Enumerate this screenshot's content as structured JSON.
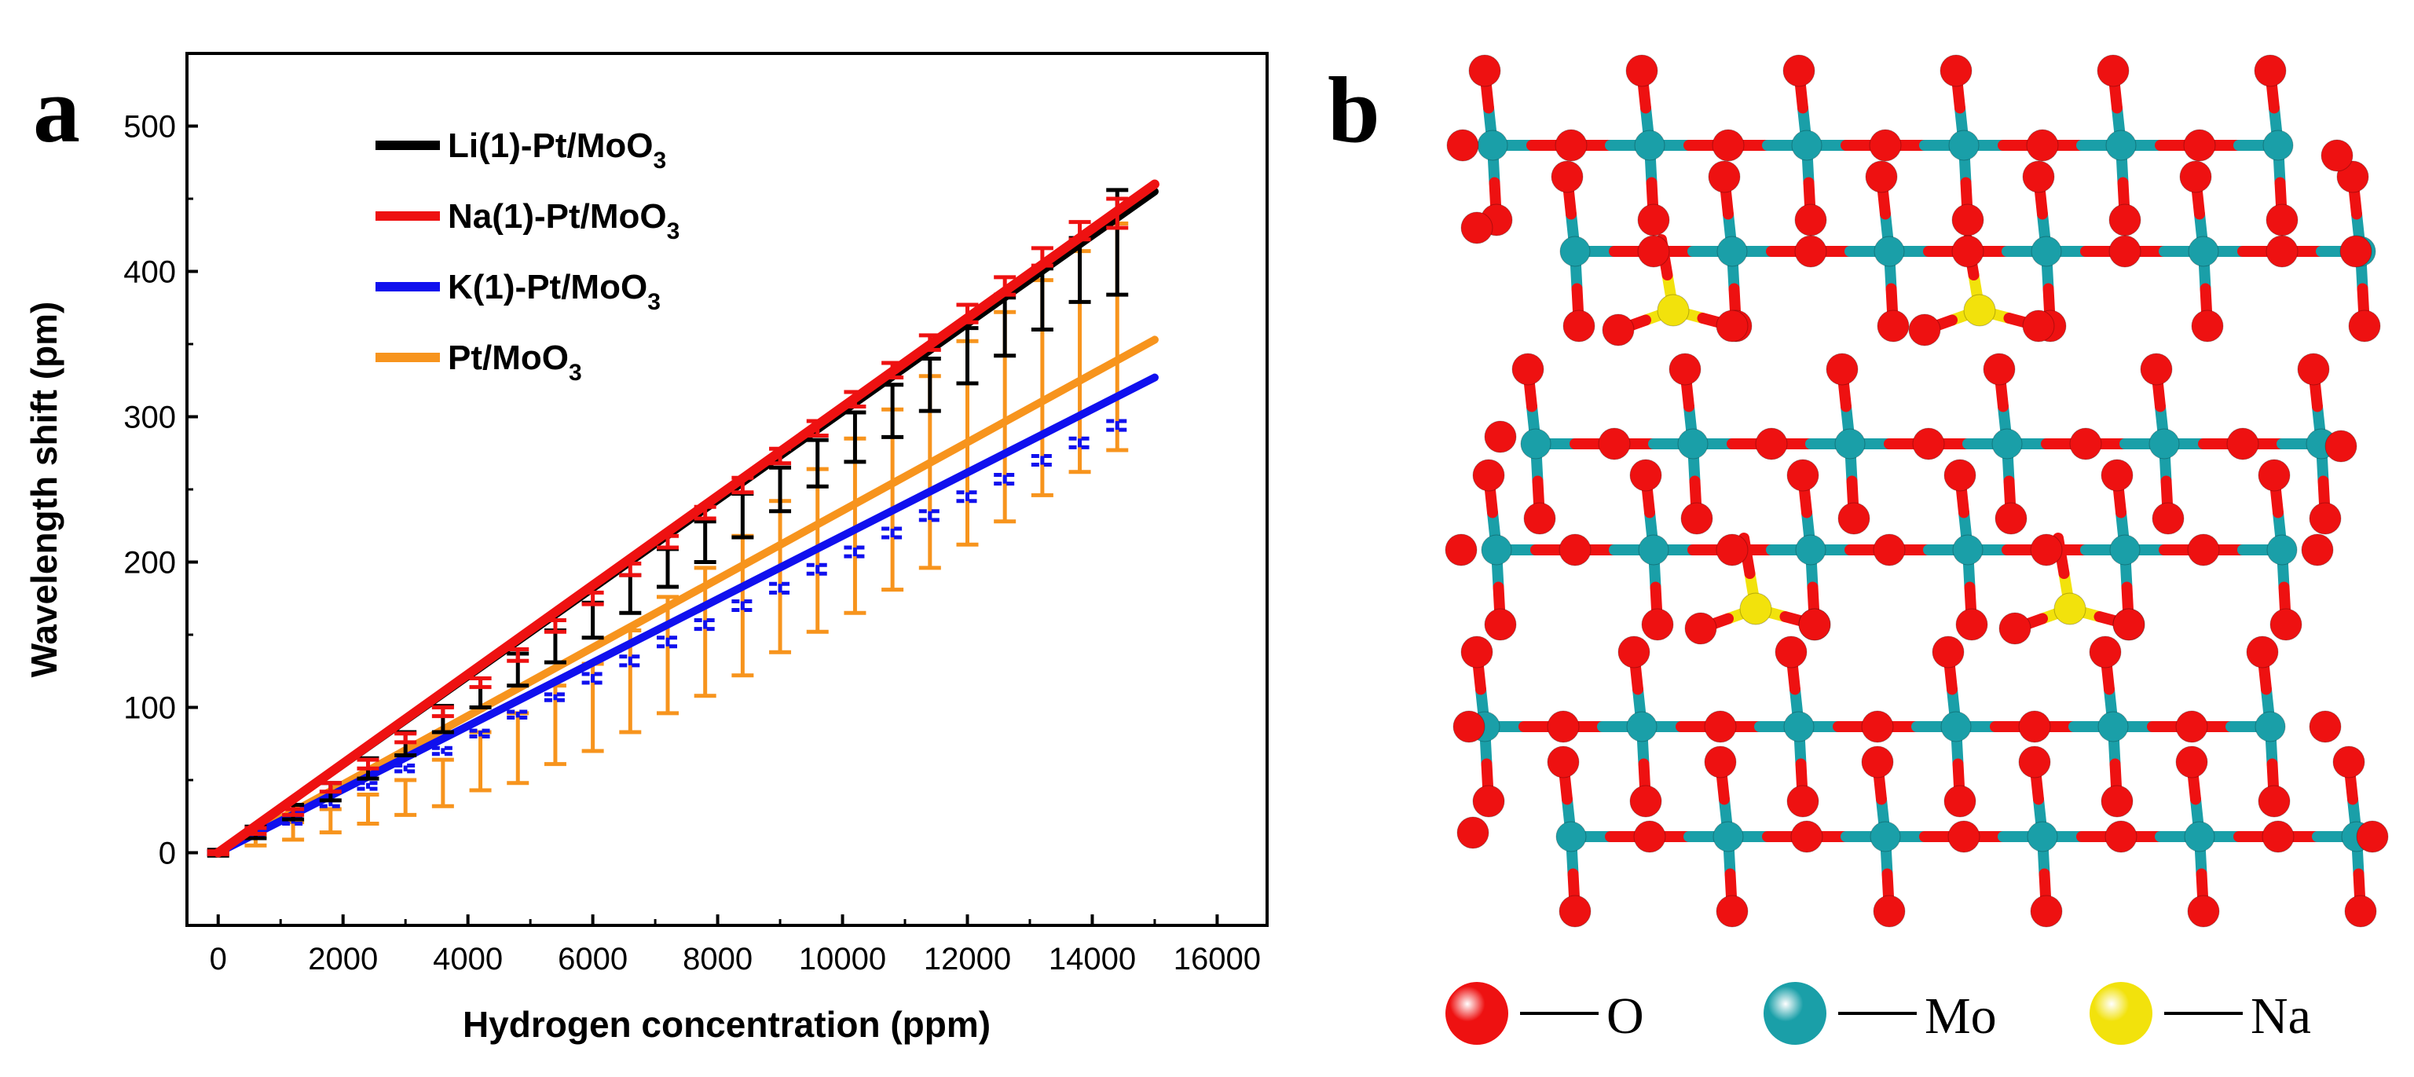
{
  "chart_data": [
    {
      "panel": "a",
      "type": "line",
      "xlabel": "Hydrogen concentration (ppm)",
      "ylabel": "Wavelength shift (pm)",
      "xlim": [
        -500,
        16800
      ],
      "ylim": [
        -50,
        550
      ],
      "xticks": [
        0,
        2000,
        4000,
        6000,
        8000,
        10000,
        12000,
        14000,
        16000
      ],
      "yticks": [
        0,
        100,
        200,
        300,
        400,
        500
      ],
      "legend_position": "top-left",
      "series": [
        {
          "name": "Li(1)-Pt/MoO",
          "sub": "3",
          "color": "#000000",
          "fit_x": [
            0,
            15000
          ],
          "fit_y": [
            0,
            455
          ],
          "points_x": [
            0,
            600,
            1200,
            1800,
            2400,
            3000,
            3600,
            4200,
            4800,
            5400,
            6000,
            6600,
            7200,
            7800,
            8400,
            9000,
            9600,
            10200,
            10800,
            11400,
            12000,
            12600,
            13200,
            13800,
            14400
          ],
          "points_y": [
            0,
            14,
            28,
            42,
            58,
            75,
            92,
            110,
            126,
            142,
            160,
            178,
            196,
            214,
            232,
            250,
            268,
            286,
            304,
            322,
            342,
            362,
            381,
            401,
            420
          ],
          "errors": [
            2,
            4,
            5,
            6,
            7,
            8,
            9,
            10,
            11,
            11,
            12,
            13,
            13,
            14,
            15,
            15,
            16,
            17,
            18,
            18,
            19,
            20,
            21,
            22,
            36
          ]
        },
        {
          "name": "Na(1)-Pt/MoO",
          "sub": "3",
          "color": "#ee1111",
          "fit_x": [
            0,
            15000
          ],
          "fit_y": [
            0,
            460
          ],
          "points_x": [
            0,
            600,
            1200,
            1800,
            2400,
            3000,
            3600,
            4200,
            4800,
            5400,
            6000,
            6600,
            7200,
            7800,
            8400,
            9000,
            9600,
            10200,
            10800,
            11400,
            12000,
            12600,
            13200,
            13800,
            14400
          ],
          "points_y": [
            0,
            15,
            28,
            45,
            61,
            79,
            97,
            117,
            136,
            156,
            175,
            195,
            214,
            234,
            253,
            273,
            292,
            312,
            332,
            351,
            371,
            390,
            410,
            428,
            440
          ],
          "errors": [
            1,
            2,
            2,
            3,
            3,
            3,
            3,
            3,
            4,
            4,
            4,
            4,
            4,
            4,
            5,
            5,
            5,
            5,
            5,
            5,
            6,
            6,
            6,
            6,
            10
          ]
        },
        {
          "name": "K(1)-Pt/MoO",
          "sub": "3",
          "color": "#1010ee",
          "fit_x": [
            0,
            15000
          ],
          "fit_y": [
            0,
            327
          ],
          "points_x": [
            0,
            600,
            1200,
            1800,
            2400,
            3000,
            3600,
            4200,
            4800,
            5400,
            6000,
            6600,
            7200,
            7800,
            8400,
            9000,
            9600,
            10200,
            10800,
            11400,
            12000,
            12600,
            13200,
            13800,
            14400
          ],
          "points_y": [
            0,
            11,
            22,
            34,
            46,
            58,
            70,
            82,
            95,
            107,
            120,
            132,
            145,
            157,
            170,
            182,
            195,
            207,
            220,
            232,
            245,
            257,
            270,
            282,
            294
          ],
          "errors": [
            1,
            1,
            2,
            2,
            2,
            2,
            2,
            2,
            2,
            2,
            3,
            3,
            3,
            3,
            3,
            3,
            3,
            3,
            3,
            3,
            3,
            3,
            3,
            3,
            3
          ]
        },
        {
          "name": "Pt/MoO",
          "sub": "3",
          "color": "#f7941d",
          "fit_x": [
            0,
            15000
          ],
          "fit_y": [
            0,
            353
          ],
          "points_x": [
            0,
            600,
            1200,
            1800,
            2400,
            3000,
            3600,
            4200,
            4800,
            5400,
            6000,
            6600,
            7200,
            7800,
            8400,
            9000,
            9600,
            10200,
            10800,
            11400,
            12000,
            12600,
            13200,
            13800,
            14400
          ],
          "points_y": [
            0,
            8,
            15,
            22,
            30,
            38,
            48,
            63,
            72,
            88,
            100,
            118,
            136,
            152,
            170,
            190,
            208,
            225,
            243,
            262,
            282,
            300,
            320,
            338,
            355
          ],
          "errors": [
            1,
            3,
            6,
            8,
            10,
            12,
            16,
            20,
            24,
            27,
            30,
            35,
            40,
            44,
            48,
            52,
            56,
            60,
            62,
            66,
            70,
            72,
            74,
            76,
            78
          ]
        }
      ]
    }
  ],
  "panels": {
    "a_label": "a",
    "b_label": "b"
  },
  "structure_legend": [
    {
      "element": "O",
      "color": "#ee1111"
    },
    {
      "element": "Mo",
      "color": "#1a9fa8"
    },
    {
      "element": "Na",
      "color": "#f2e20c"
    }
  ]
}
